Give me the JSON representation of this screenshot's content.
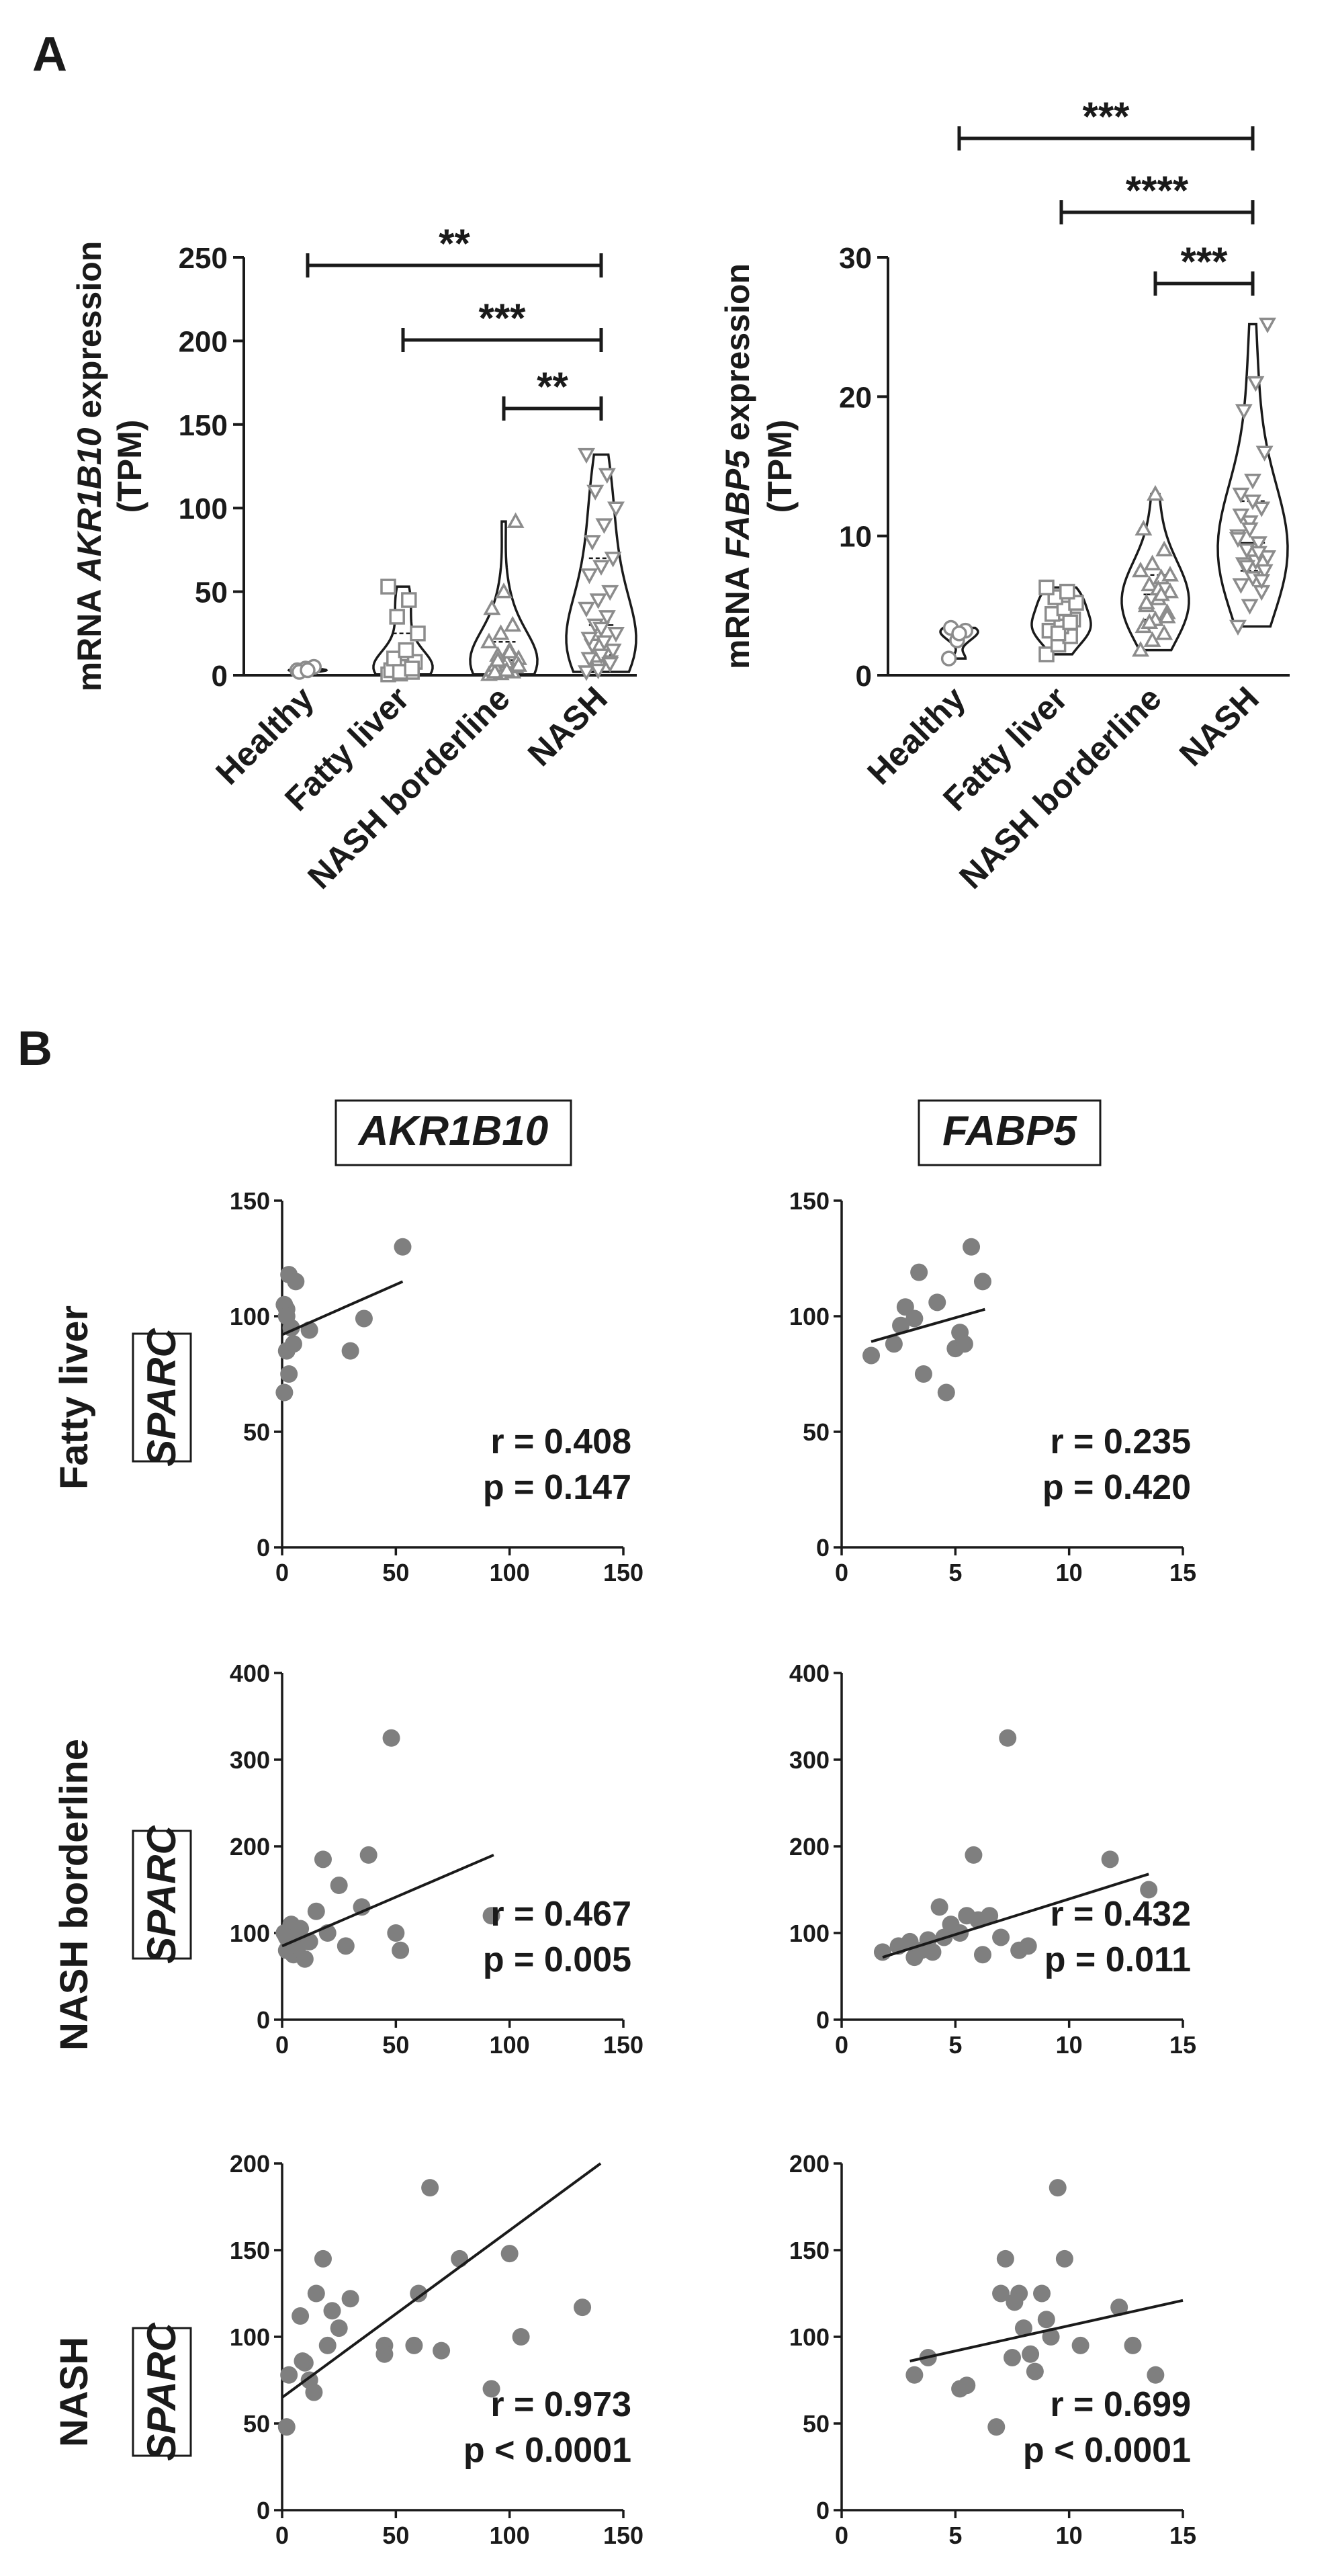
{
  "panel_a_label": "A",
  "panel_b_label": "B",
  "panel_b_gene_headers": [
    "AKR1B10",
    "FABP5"
  ],
  "panel_b_row_labels": [
    "Fatty liver",
    "NASH borderline",
    "NASH"
  ],
  "panel_b_row_gene": "SPARC",
  "colors": {
    "marker": "#7f7f7f",
    "ink": "#1a1a1a",
    "background": "#ffffff"
  },
  "chart_data": [
    {
      "type": "violin",
      "title": "",
      "ylabel_prefix": "mRNA ",
      "ylabel_gene": "AKR1B10",
      "ylabel_suffix": " expression",
      "ylabel_unit": "(TPM)",
      "categories": [
        "Healthy",
        "Fatty liver",
        "NASH borderline",
        "NASH"
      ],
      "markers": [
        "circle",
        "square",
        "triangle",
        "triangle-down"
      ],
      "ylim": [
        0,
        250
      ],
      "yticks": [
        0,
        50,
        100,
        150,
        200,
        250
      ],
      "series": [
        {
          "name": "Healthy",
          "values": [
            3,
            4,
            5,
            2,
            3
          ],
          "max": 5
        },
        {
          "name": "Fatty liver",
          "values": [
            0.5,
            1,
            2,
            3,
            5,
            8,
            10,
            15,
            25,
            35,
            45,
            53,
            2,
            4
          ],
          "max": 53
        },
        {
          "name": "NASH borderline",
          "values": [
            0.5,
            1,
            2,
            3,
            4,
            5,
            6,
            8,
            10,
            12,
            15,
            20,
            25,
            30,
            40,
            50,
            92,
            2,
            3,
            6,
            9,
            14
          ],
          "max": 92
        },
        {
          "name": "NASH",
          "values": [
            2,
            5,
            8,
            10,
            12,
            15,
            18,
            20,
            25,
            30,
            35,
            40,
            45,
            50,
            60,
            65,
            70,
            80,
            90,
            100,
            110,
            120,
            132,
            3,
            7,
            22,
            28
          ],
          "max": 132
        }
      ],
      "significance": [
        {
          "from": "Healthy",
          "to": "NASH",
          "label": "**"
        },
        {
          "from": "Fatty liver",
          "to": "NASH",
          "label": "***"
        },
        {
          "from": "NASH borderline",
          "to": "NASH",
          "label": "**"
        }
      ]
    },
    {
      "type": "violin",
      "title": "",
      "ylabel_prefix": "mRNA ",
      "ylabel_gene": "FABP5",
      "ylabel_suffix": " expression",
      "ylabel_unit": "(TPM)",
      "categories": [
        "Healthy",
        "Fatty liver",
        "NASH borderline",
        "NASH"
      ],
      "markers": [
        "circle",
        "square",
        "triangle",
        "triangle-down"
      ],
      "ylim": [
        0,
        30
      ],
      "yticks": [
        0,
        10,
        20,
        30
      ],
      "series": [
        {
          "name": "Healthy",
          "values": [
            1.2,
            2.5,
            3.2,
            3.4,
            3.0
          ],
          "max": 3.4
        },
        {
          "name": "Fatty liver",
          "values": [
            1.5,
            2.2,
            2.8,
            3.2,
            3.5,
            4.0,
            4.4,
            4.8,
            5.2,
            5.6,
            6.0,
            6.3,
            3.0,
            3.8
          ],
          "max": 6.3
        },
        {
          "name": "NASH borderline",
          "values": [
            1.8,
            2.5,
            3.0,
            3.5,
            4.0,
            4.5,
            5.0,
            5.5,
            6.0,
            6.5,
            7.0,
            7.5,
            8.0,
            9.0,
            10.5,
            13.0,
            4.2,
            5.2,
            6.2,
            7.2,
            3.8,
            5.8
          ],
          "max": 13.0
        },
        {
          "name": "NASH",
          "values": [
            3.5,
            5.0,
            6.0,
            6.5,
            7.0,
            7.5,
            8.0,
            8.2,
            8.5,
            9.0,
            9.5,
            10.0,
            11.0,
            12.0,
            13.0,
            14.0,
            16.0,
            19.0,
            21.0,
            25.2,
            7.8,
            8.8,
            9.8,
            10.5,
            6.8,
            11.5,
            12.5
          ],
          "max": 25.2
        }
      ],
      "significance": [
        {
          "from": "Healthy",
          "to": "NASH",
          "label": "***"
        },
        {
          "from": "Fatty liver",
          "to": "NASH",
          "label": "****"
        },
        {
          "from": "NASH borderline",
          "to": "NASH",
          "label": "***"
        }
      ]
    },
    {
      "type": "scatter",
      "xlabel": "",
      "ylabel": "",
      "row": "Fatty liver",
      "col": "AKR1B10",
      "xlim": [
        0,
        150
      ],
      "xticks": [
        0,
        50,
        100,
        150
      ],
      "ylim": [
        0,
        150
      ],
      "yticks": [
        0,
        50,
        100,
        150
      ],
      "x": [
        1,
        2,
        3,
        4,
        6,
        2,
        3,
        1,
        5,
        12,
        30,
        36,
        53,
        2
      ],
      "y": [
        105,
        103,
        118,
        95,
        115,
        85,
        75,
        67,
        88,
        94,
        85,
        99,
        130,
        100
      ],
      "fit": {
        "x": [
          0,
          53
        ],
        "y": [
          92,
          115
        ]
      },
      "r_label": "r = 0.408",
      "p_label": "p = 0.147"
    },
    {
      "type": "scatter",
      "xlabel": "",
      "ylabel": "",
      "row": "Fatty liver",
      "col": "FABP5",
      "xlim": [
        0,
        15
      ],
      "xticks": [
        0,
        5,
        10,
        15
      ],
      "ylim": [
        0,
        150
      ],
      "yticks": [
        0,
        50,
        100,
        150
      ],
      "x": [
        1.3,
        2.3,
        2.6,
        2.8,
        3.2,
        3.4,
        3.6,
        4.2,
        4.6,
        5.0,
        5.2,
        5.7,
        6.2,
        5.4
      ],
      "y": [
        83,
        88,
        96,
        104,
        99,
        119,
        75,
        106,
        67,
        86,
        93,
        130,
        115,
        88
      ],
      "fit": {
        "x": [
          1.3,
          6.3
        ],
        "y": [
          89,
          103
        ]
      },
      "r_label": "r = 0.235",
      "p_label": "p = 0.420"
    },
    {
      "type": "scatter",
      "xlabel": "",
      "ylabel": "",
      "row": "NASH borderline",
      "col": "AKR1B10",
      "xlim": [
        0,
        150
      ],
      "xticks": [
        0,
        50,
        100,
        150
      ],
      "ylim": [
        0,
        400
      ],
      "yticks": [
        0,
        100,
        200,
        300,
        400
      ],
      "x": [
        1,
        2,
        3,
        4,
        5,
        6,
        7,
        8,
        10,
        12,
        15,
        18,
        20,
        25,
        28,
        35,
        38,
        48,
        50,
        52,
        92,
        2
      ],
      "y": [
        100,
        80,
        90,
        110,
        75,
        95,
        85,
        105,
        70,
        90,
        125,
        185,
        100,
        155,
        85,
        130,
        190,
        325,
        100,
        80,
        120,
        95
      ],
      "fit": {
        "x": [
          0,
          93
        ],
        "y": [
          85,
          190
        ]
      },
      "r_label": "r = 0.467",
      "p_label": "p = 0.005"
    },
    {
      "type": "scatter",
      "xlabel": "",
      "ylabel": "",
      "row": "NASH borderline",
      "col": "FABP5",
      "xlim": [
        0,
        15
      ],
      "xticks": [
        0,
        5,
        10,
        15
      ],
      "ylim": [
        0,
        400
      ],
      "yticks": [
        0,
        100,
        200,
        300,
        400
      ],
      "x": [
        1.8,
        2.5,
        3.0,
        3.2,
        3.5,
        3.8,
        4.0,
        4.3,
        4.5,
        4.8,
        5.2,
        5.5,
        5.8,
        6.0,
        6.2,
        6.5,
        7.0,
        7.3,
        7.8,
        8.2,
        11.8,
        13.5
      ],
      "y": [
        78,
        85,
        90,
        72,
        80,
        92,
        78,
        130,
        95,
        110,
        100,
        120,
        190,
        115,
        75,
        120,
        95,
        325,
        80,
        85,
        185,
        150
      ],
      "fit": {
        "x": [
          1.8,
          13.5
        ],
        "y": [
          72,
          168
        ]
      },
      "r_label": "r = 0.432",
      "p_label": "p = 0.011"
    },
    {
      "type": "scatter",
      "xlabel": "",
      "ylabel": "",
      "row": "NASH",
      "col": "AKR1B10",
      "xlim": [
        0,
        150
      ],
      "xticks": [
        0,
        50,
        100,
        150
      ],
      "ylim": [
        0,
        200
      ],
      "yticks": [
        0,
        50,
        100,
        150,
        200
      ],
      "x": [
        2,
        3,
        8,
        10,
        12,
        15,
        18,
        20,
        22,
        25,
        30,
        45,
        45,
        58,
        60,
        65,
        70,
        78,
        92,
        100,
        105,
        132,
        14,
        9
      ],
      "y": [
        48,
        78,
        112,
        85,
        75,
        125,
        145,
        95,
        115,
        105,
        122,
        95,
        90,
        95,
        125,
        186,
        92,
        145,
        70,
        148,
        100,
        117,
        68,
        86
      ],
      "fit": {
        "x": [
          0,
          140
        ],
        "y": [
          65,
          200
        ]
      },
      "r_label": "r = 0.973",
      "p_label": "p < 0.0001"
    },
    {
      "type": "scatter",
      "xlabel": "",
      "ylabel": "",
      "row": "NASH",
      "col": "FABP5",
      "xlim": [
        0,
        15
      ],
      "xticks": [
        0,
        5,
        10,
        15
      ],
      "ylim": [
        0,
        200
      ],
      "yticks": [
        0,
        50,
        100,
        150,
        200
      ],
      "x": [
        3.2,
        3.8,
        5.2,
        5.5,
        6.8,
        7.0,
        7.2,
        7.5,
        7.8,
        8.0,
        8.3,
        8.5,
        8.8,
        9.2,
        9.5,
        9.8,
        10.5,
        12.2,
        12.8,
        13.8,
        9.0,
        7.6
      ],
      "y": [
        78,
        88,
        70,
        72,
        48,
        125,
        145,
        88,
        125,
        105,
        90,
        80,
        125,
        100,
        186,
        145,
        95,
        117,
        95,
        78,
        110,
        120
      ],
      "fit": {
        "x": [
          3.0,
          15
        ],
        "y": [
          86,
          121
        ]
      },
      "r_label": "r = 0.699",
      "p_label": "p < 0.0001"
    }
  ]
}
